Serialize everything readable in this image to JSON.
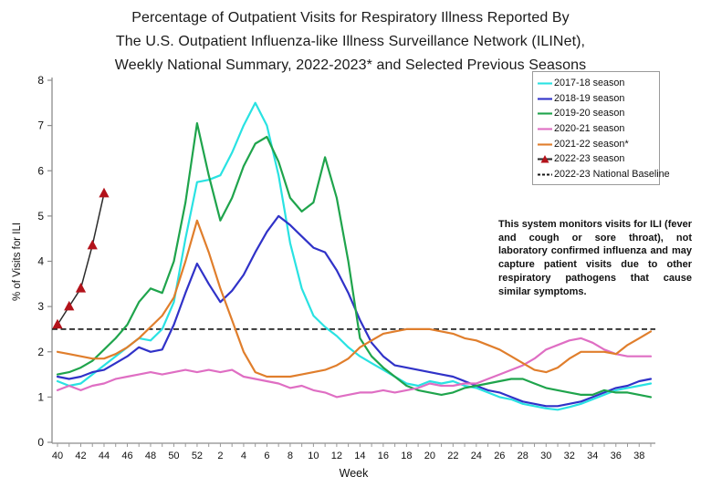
{
  "title": {
    "line1": "Percentage of Outpatient Visits for Respiratory Illness Reported By",
    "line2": "The U.S. Outpatient Influenza-like Illness Surveillance Network (ILINet),",
    "line3": "Weekly National Summary, 2022-2023* and Selected Previous Seasons"
  },
  "annotation": {
    "text": "This system monitors visits for ILI (fever and cough or sore throat), not laboratory confirmed influenza and may capture patient visits due to other respiratory pathogens that cause similar symptoms."
  },
  "chart_data": {
    "type": "line",
    "xlabel": "Week",
    "ylabel": "% of Visits for ILI",
    "ylim": [
      0,
      8
    ],
    "y_ticks": [
      0,
      1,
      2,
      3,
      4,
      5,
      6,
      7,
      8
    ],
    "grid": false,
    "legend_position": "top-right",
    "x_categories": [
      "40",
      "41",
      "42",
      "43",
      "44",
      "45",
      "46",
      "47",
      "48",
      "49",
      "50",
      "51",
      "52",
      "1",
      "2",
      "3",
      "4",
      "5",
      "6",
      "7",
      "8",
      "9",
      "10",
      "11",
      "12",
      "13",
      "14",
      "15",
      "16",
      "17",
      "18",
      "19",
      "20",
      "21",
      "22",
      "23",
      "24",
      "25",
      "26",
      "27",
      "28",
      "29",
      "30",
      "31",
      "32",
      "33",
      "34",
      "35",
      "36",
      "37",
      "38",
      "39"
    ],
    "x_label_every": 2,
    "baseline": {
      "label": "2022-23 National Baseline",
      "value": 2.5,
      "color": "#151515",
      "style": "dashed"
    },
    "series": [
      {
        "name": "2017-18 season",
        "color": "#29E2E2",
        "marker": "none",
        "values": [
          1.35,
          1.25,
          1.3,
          1.5,
          1.7,
          1.9,
          2.1,
          2.3,
          2.25,
          2.5,
          3.1,
          4.5,
          5.75,
          5.8,
          5.9,
          6.4,
          7.0,
          7.5,
          7.0,
          5.9,
          4.4,
          3.4,
          2.8,
          2.55,
          2.35,
          2.1,
          1.9,
          1.75,
          1.6,
          1.45,
          1.3,
          1.25,
          1.35,
          1.3,
          1.35,
          1.25,
          1.2,
          1.1,
          1.0,
          0.95,
          0.85,
          0.8,
          0.75,
          0.72,
          0.78,
          0.85,
          0.95,
          1.05,
          1.15,
          1.2,
          1.25,
          1.3
        ]
      },
      {
        "name": "2018-19 season",
        "color": "#3032C8",
        "marker": "none",
        "values": [
          1.45,
          1.4,
          1.45,
          1.55,
          1.6,
          1.75,
          1.9,
          2.1,
          2.0,
          2.05,
          2.6,
          3.3,
          3.95,
          3.5,
          3.1,
          3.35,
          3.7,
          4.2,
          4.65,
          5.0,
          4.8,
          4.55,
          4.3,
          4.2,
          3.8,
          3.3,
          2.7,
          2.2,
          1.9,
          1.7,
          1.65,
          1.6,
          1.55,
          1.5,
          1.45,
          1.35,
          1.25,
          1.15,
          1.1,
          1.0,
          0.9,
          0.85,
          0.8,
          0.8,
          0.85,
          0.9,
          1.0,
          1.1,
          1.2,
          1.25,
          1.35,
          1.4
        ]
      },
      {
        "name": "2019-20 season",
        "color": "#1FA44C",
        "marker": "none",
        "values": [
          1.5,
          1.55,
          1.65,
          1.8,
          2.05,
          2.3,
          2.6,
          3.1,
          3.4,
          3.3,
          4.0,
          5.3,
          7.05,
          5.9,
          4.9,
          5.4,
          6.1,
          6.6,
          6.75,
          6.2,
          5.4,
          5.1,
          5.3,
          6.3,
          5.4,
          4.0,
          2.3,
          1.9,
          1.65,
          1.45,
          1.25,
          1.15,
          1.1,
          1.05,
          1.1,
          1.2,
          1.25,
          1.3,
          1.35,
          1.4,
          1.4,
          1.3,
          1.2,
          1.15,
          1.1,
          1.05,
          1.05,
          1.15,
          1.1,
          1.1,
          1.05,
          1.0
        ]
      },
      {
        "name": "2020-21 season",
        "color": "#DF6EC3",
        "marker": "none",
        "values": [
          1.15,
          1.25,
          1.15,
          1.25,
          1.3,
          1.4,
          1.45,
          1.5,
          1.55,
          1.5,
          1.55,
          1.6,
          1.55,
          1.6,
          1.55,
          1.6,
          1.45,
          1.4,
          1.35,
          1.3,
          1.2,
          1.25,
          1.15,
          1.1,
          1.0,
          1.05,
          1.1,
          1.1,
          1.15,
          1.1,
          1.15,
          1.2,
          1.3,
          1.25,
          1.25,
          1.3,
          1.3,
          1.4,
          1.5,
          1.6,
          1.7,
          1.85,
          2.05,
          2.15,
          2.25,
          2.3,
          2.2,
          2.05,
          1.95,
          1.9,
          1.9,
          1.9
        ]
      },
      {
        "name": "2021-22 season*",
        "color": "#E07E2C",
        "marker": "none",
        "values": [
          2.0,
          1.95,
          1.9,
          1.85,
          1.85,
          1.95,
          2.1,
          2.3,
          2.55,
          2.8,
          3.2,
          4.0,
          4.9,
          4.2,
          3.4,
          2.7,
          2.0,
          1.55,
          1.45,
          1.45,
          1.45,
          1.5,
          1.55,
          1.6,
          1.7,
          1.85,
          2.1,
          2.25,
          2.4,
          2.45,
          2.5,
          2.5,
          2.5,
          2.45,
          2.4,
          2.3,
          2.25,
          2.15,
          2.05,
          1.9,
          1.75,
          1.6,
          1.55,
          1.65,
          1.85,
          2.0,
          2.0,
          2.0,
          1.95,
          2.15,
          2.3,
          2.45
        ]
      },
      {
        "name": "2022-23 season",
        "color": "#B3121A",
        "line_color": "#2b2b2b",
        "marker": "triangle",
        "values": [
          2.6,
          3.0,
          3.4,
          4.35,
          5.5
        ]
      }
    ]
  }
}
